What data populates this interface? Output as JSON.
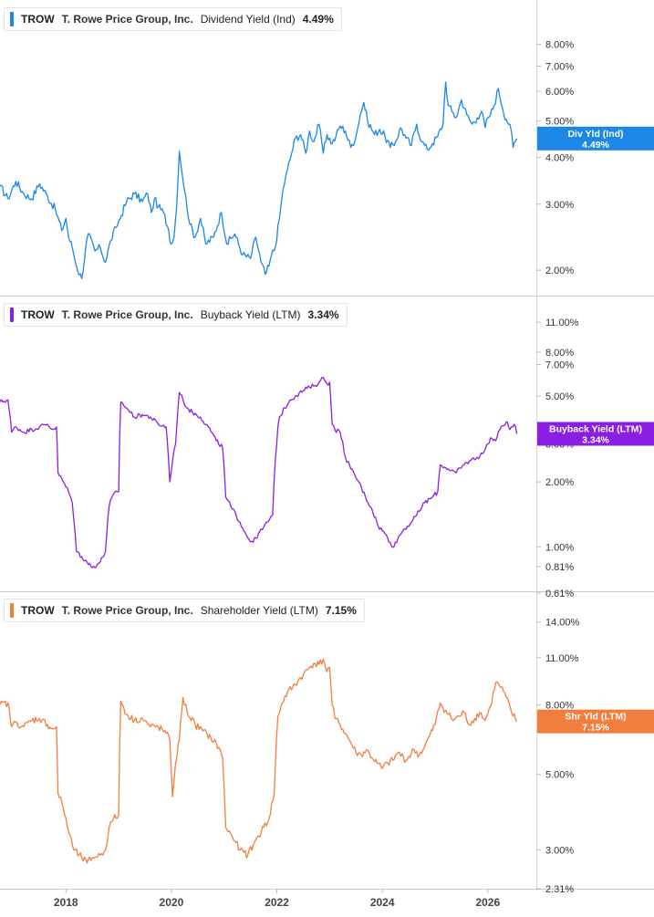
{
  "chart_data": [
    {
      "type": "line",
      "scale": "log",
      "ticker": "TROW",
      "company": "T. Rowe Price Group, Inc.",
      "metric": "Dividend Yield (Ind)",
      "current_value": "4.49%",
      "badge_label": "Div Yld (Ind)",
      "color": "#1b87e6",
      "ylim": [
        1.75,
        9.5
      ],
      "yticks": [
        {
          "value": 8,
          "label": "8.00%"
        },
        {
          "value": 7,
          "label": "7.00%"
        },
        {
          "value": 6,
          "label": "6.00%"
        },
        {
          "value": 5,
          "label": "5.00%"
        },
        {
          "value": 4,
          "label": "4.00%"
        },
        {
          "value": 3,
          "label": "3.00%"
        },
        {
          "value": 2,
          "label": "2.00%"
        }
      ],
      "x": [
        2016.75,
        2016.9,
        2017.05,
        2017.2,
        2017.35,
        2017.5,
        2017.65,
        2017.8,
        2017.92,
        2018.0,
        2018.05,
        2018.12,
        2018.2,
        2018.3,
        2018.42,
        2018.55,
        2018.65,
        2018.75,
        2018.85,
        2018.95,
        2019.05,
        2019.15,
        2019.3,
        2019.45,
        2019.55,
        2019.62,
        2019.68,
        2019.75,
        2019.85,
        2019.95,
        2019.99,
        2020.05,
        2020.1,
        2020.15,
        2020.25,
        2020.35,
        2020.45,
        2020.55,
        2020.65,
        2020.8,
        2020.95,
        2021.05,
        2021.2,
        2021.35,
        2021.5,
        2021.6,
        2021.7,
        2021.78,
        2021.85,
        2021.9,
        2021.97,
        2022.05,
        2022.12,
        2022.2,
        2022.28,
        2022.35,
        2022.45,
        2022.55,
        2022.62,
        2022.7,
        2022.8,
        2022.88,
        2022.95,
        2023.05,
        2023.12,
        2023.2,
        2023.3,
        2023.4,
        2023.5,
        2023.58,
        2023.65,
        2023.72,
        2023.85,
        2023.95,
        2024.05,
        2024.15,
        2024.25,
        2024.35,
        2024.45,
        2024.55,
        2024.65,
        2024.75,
        2024.85,
        2024.95,
        2025.05,
        2025.15,
        2025.2,
        2025.25,
        2025.32,
        2025.4,
        2025.5,
        2025.6,
        2025.7,
        2025.8,
        2025.88,
        2025.95,
        2026.0,
        2026.05,
        2026.12,
        2026.2,
        2026.28,
        2026.35,
        2026.42,
        2026.48,
        2026.55
      ],
      "values": [
        3.35,
        3.1,
        3.45,
        3.2,
        3.1,
        3.4,
        3.15,
        2.9,
        2.55,
        2.75,
        2.45,
        2.3,
        2.05,
        1.9,
        2.5,
        2.25,
        2.3,
        2.1,
        2.4,
        2.6,
        2.8,
        3.05,
        3.2,
        3.05,
        3.2,
        2.85,
        3.1,
        2.95,
        2.85,
        2.55,
        2.35,
        2.45,
        2.95,
        4.15,
        3.25,
        2.65,
        2.45,
        2.75,
        2.35,
        2.45,
        2.85,
        2.35,
        2.5,
        2.2,
        2.15,
        2.45,
        2.1,
        1.95,
        2.05,
        2.2,
        2.3,
        2.75,
        3.3,
        3.7,
        4.1,
        4.5,
        4.6,
        4.1,
        4.7,
        4.4,
        4.9,
        4.1,
        4.6,
        4.35,
        4.55,
        4.85,
        4.7,
        4.25,
        4.55,
        5.2,
        5.6,
        5.0,
        4.6,
        4.75,
        4.55,
        4.25,
        4.4,
        4.8,
        4.5,
        4.3,
        4.9,
        4.4,
        4.2,
        4.35,
        4.55,
        4.9,
        6.35,
        5.5,
        5.3,
        5.1,
        5.7,
        5.2,
        4.9,
        5.1,
        5.3,
        4.8,
        5.1,
        5.2,
        5.5,
        6.1,
        5.4,
        5.05,
        4.9,
        4.25,
        4.49
      ]
    },
    {
      "type": "line",
      "scale": "log",
      "ticker": "TROW",
      "company": "T. Rowe Price Group, Inc.",
      "metric": "Buyback Yield (LTM)",
      "current_value": "3.34%",
      "badge_label": "Buyback Yield (LTM)",
      "color": "#8a1fe3",
      "ylim": [
        0.61,
        13
      ],
      "yticks": [
        {
          "value": 11,
          "label": "11.00%"
        },
        {
          "value": 8,
          "label": "8.00%"
        },
        {
          "value": 7,
          "label": "7.00%"
        },
        {
          "value": 5,
          "label": "5.00%"
        },
        {
          "value": 3,
          "label": "3.00%"
        },
        {
          "value": 2,
          "label": "2.00%"
        },
        {
          "value": 1,
          "label": "1.00%"
        },
        {
          "value": 0.81,
          "label": "0.81%"
        },
        {
          "value": 0.61,
          "label": "0.61%"
        }
      ],
      "x": [
        2016.75,
        2016.9,
        2016.97,
        2017.05,
        2017.2,
        2017.35,
        2017.5,
        2017.65,
        2017.75,
        2017.82,
        2017.85,
        2017.95,
        2018.05,
        2018.12,
        2018.2,
        2018.3,
        2018.4,
        2018.5,
        2018.65,
        2018.75,
        2018.82,
        2018.9,
        2019.0,
        2019.04,
        2019.15,
        2019.3,
        2019.45,
        2019.6,
        2019.75,
        2019.9,
        2019.97,
        2020.02,
        2020.08,
        2020.15,
        2020.22,
        2020.3,
        2020.4,
        2020.55,
        2020.7,
        2020.85,
        2020.97,
        2021.03,
        2021.15,
        2021.3,
        2021.45,
        2021.55,
        2021.65,
        2021.72,
        2021.82,
        2021.92,
        2022.02,
        2022.05,
        2022.15,
        2022.25,
        2022.35,
        2022.5,
        2022.62,
        2022.72,
        2022.8,
        2022.88,
        2022.95,
        2023.0,
        2023.05,
        2023.1,
        2023.2,
        2023.3,
        2023.4,
        2023.55,
        2023.68,
        2023.8,
        2023.92,
        2024.05,
        2024.15,
        2024.22,
        2024.3,
        2024.4,
        2024.55,
        2024.65,
        2024.8,
        2024.95,
        2025.05,
        2025.1,
        2025.25,
        2025.4,
        2025.55,
        2025.65,
        2025.8,
        2025.9,
        2026.0,
        2026.05,
        2026.15,
        2026.25,
        2026.35,
        2026.42,
        2026.5,
        2026.55
      ],
      "values": [
        4.7,
        4.8,
        3.4,
        3.6,
        3.4,
        3.5,
        3.6,
        3.7,
        3.5,
        3.6,
        2.2,
        2.0,
        1.8,
        1.6,
        0.95,
        0.9,
        0.85,
        0.8,
        0.85,
        0.95,
        1.55,
        1.75,
        1.8,
        4.7,
        4.4,
        4.0,
        4.1,
        4.0,
        3.7,
        3.6,
        2.0,
        2.5,
        3.0,
        5.2,
        4.8,
        4.4,
        4.2,
        4.0,
        3.6,
        3.1,
        2.9,
        1.7,
        1.5,
        1.3,
        1.1,
        1.05,
        1.15,
        1.2,
        1.3,
        1.4,
        3.6,
        4.0,
        4.4,
        4.8,
        5.0,
        5.3,
        5.5,
        5.6,
        5.8,
        6.1,
        5.7,
        5.8,
        3.7,
        3.5,
        3.4,
        2.6,
        2.3,
        2.0,
        1.7,
        1.5,
        1.25,
        1.15,
        1.05,
        1.0,
        1.1,
        1.2,
        1.3,
        1.4,
        1.6,
        1.7,
        1.8,
        2.4,
        2.3,
        2.2,
        2.4,
        2.5,
        2.6,
        2.7,
        3.0,
        3.2,
        3.1,
        3.6,
        3.8,
        3.5,
        3.7,
        3.34
      ]
    },
    {
      "type": "line",
      "scale": "log",
      "ticker": "TROW",
      "company": "T. Rowe Price Group, Inc.",
      "metric": "Shareholder Yield (LTM)",
      "current_value": "7.15%",
      "badge_label": "Shr Yld (LTM)",
      "color": "#f27e3e",
      "ylim": [
        2.31,
        16
      ],
      "yticks": [
        {
          "value": 14,
          "label": "14.00%"
        },
        {
          "value": 11,
          "label": "11.00%"
        },
        {
          "value": 8,
          "label": "8.00%"
        },
        {
          "value": 7,
          "label": "7.00%"
        },
        {
          "value": 5,
          "label": "5.00%"
        },
        {
          "value": 3,
          "label": "3.00%"
        },
        {
          "value": 2.31,
          "label": "2.31%"
        }
      ],
      "x": [
        2016.75,
        2016.9,
        2016.97,
        2017.05,
        2017.2,
        2017.35,
        2017.5,
        2017.65,
        2017.75,
        2017.82,
        2017.85,
        2017.95,
        2018.05,
        2018.15,
        2018.25,
        2018.4,
        2018.5,
        2018.65,
        2018.75,
        2018.82,
        2018.9,
        2019.0,
        2019.04,
        2019.15,
        2019.3,
        2019.45,
        2019.6,
        2019.75,
        2019.9,
        2019.97,
        2020.02,
        2020.08,
        2020.15,
        2020.22,
        2020.3,
        2020.45,
        2020.6,
        2020.75,
        2020.9,
        2020.97,
        2021.03,
        2021.15,
        2021.3,
        2021.45,
        2021.55,
        2021.65,
        2021.75,
        2021.85,
        2021.95,
        2022.02,
        2022.1,
        2022.2,
        2022.3,
        2022.4,
        2022.5,
        2022.6,
        2022.7,
        2022.8,
        2022.88,
        2022.95,
        2023.0,
        2023.05,
        2023.1,
        2023.2,
        2023.3,
        2023.4,
        2023.5,
        2023.6,
        2023.7,
        2023.8,
        2023.9,
        2024.0,
        2024.1,
        2024.2,
        2024.3,
        2024.45,
        2024.6,
        2024.7,
        2024.8,
        2024.9,
        2025.0,
        2025.1,
        2025.25,
        2025.35,
        2025.45,
        2025.55,
        2025.65,
        2025.75,
        2025.85,
        2025.95,
        2026.05,
        2026.15,
        2026.25,
        2026.35,
        2026.45,
        2026.55
      ],
      "values": [
        8.0,
        8.1,
        6.9,
        7.1,
        6.9,
        7.2,
        7.3,
        7.0,
        6.8,
        6.9,
        4.4,
        4.0,
        3.4,
        3.0,
        2.9,
        2.75,
        2.85,
        2.9,
        3.0,
        3.5,
        3.7,
        3.8,
        8.2,
        7.5,
        7.2,
        7.3,
        6.9,
        6.9,
        6.6,
        6.3,
        4.3,
        5.4,
        6.3,
        8.4,
        7.6,
        7.0,
        6.7,
        6.4,
        6.0,
        5.6,
        3.5,
        3.3,
        3.0,
        2.9,
        3.1,
        3.3,
        3.5,
        3.7,
        4.4,
        7.4,
        8.1,
        8.7,
        9.0,
        9.4,
        9.8,
        10.2,
        10.6,
        10.5,
        10.9,
        10.0,
        10.3,
        8.0,
        7.3,
        7.0,
        6.6,
        6.2,
        5.8,
        5.7,
        5.9,
        5.6,
        5.4,
        5.2,
        5.4,
        5.5,
        5.8,
        5.5,
        5.9,
        5.7,
        6.0,
        6.5,
        7.0,
        8.1,
        7.5,
        7.2,
        7.4,
        7.6,
        7.0,
        7.3,
        7.6,
        7.2,
        7.9,
        9.3,
        9.0,
        8.4,
        7.6,
        7.15
      ]
    }
  ],
  "x_axis": {
    "ticks": [
      {
        "value": 2018,
        "label": "2018"
      },
      {
        "value": 2020,
        "label": "2020"
      },
      {
        "value": 2022,
        "label": "2022"
      },
      {
        "value": 2024,
        "label": "2024"
      },
      {
        "value": 2026,
        "label": "2026"
      }
    ]
  }
}
